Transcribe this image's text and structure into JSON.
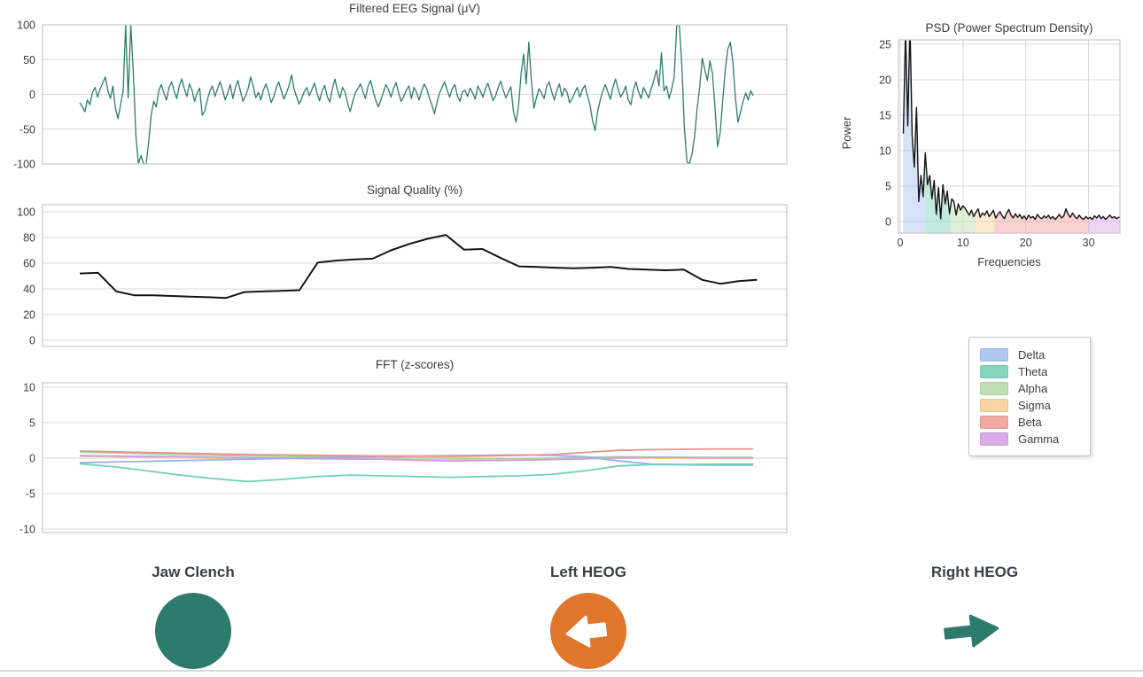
{
  "colors": {
    "eeg_line": "#2e7b6d",
    "quality_line": "#141414",
    "psd_line": "#141414",
    "grid": "#d9d9d9",
    "plot_border": "#c9c9c9",
    "indicator_teal": "#2e7b6d",
    "indicator_orange": "#e0762b",
    "divider": "#d7dbdf"
  },
  "legend": {
    "items": [
      {
        "label": "Delta",
        "color": "#aec6f0"
      },
      {
        "label": "Theta",
        "color": "#85d6bf"
      },
      {
        "label": "Alpha",
        "color": "#bfdfb2"
      },
      {
        "label": "Sigma",
        "color": "#f7d3a2"
      },
      {
        "label": "Beta",
        "color": "#f1a8a1"
      },
      {
        "label": "Gamma",
        "color": "#d9aee8"
      }
    ]
  },
  "indicators": {
    "items": [
      {
        "label": "Jaw Clench",
        "shape": "circle",
        "color": "#2e7b6d"
      },
      {
        "label": "Left HEOG",
        "shape": "circle-left-arrow",
        "color": "#e0762b"
      },
      {
        "label": "Right HEOG",
        "shape": "right-arrow",
        "color": "#2e7b6d"
      }
    ]
  },
  "chart_data": [
    {
      "type": "line",
      "title": "Filtered EEG Signal (μV)",
      "xlabel": "",
      "ylabel": "",
      "ylim": [
        -100,
        100
      ],
      "yticks": [
        100,
        50,
        0,
        -50,
        -100
      ],
      "grid": true,
      "series": [
        {
          "name": "EEG",
          "color": "#2e7b6d",
          "width": 1.3,
          "values": [
            -12,
            -18,
            -25,
            -8,
            -15,
            3,
            10,
            -4,
            8,
            16,
            25,
            6,
            -6,
            12,
            -20,
            -35,
            -15,
            5,
            100,
            -5,
            100,
            30,
            -60,
            -100,
            -88,
            -100,
            -100,
            -70,
            -30,
            -10,
            -18,
            6,
            14,
            2,
            -8,
            10,
            18,
            5,
            -6,
            12,
            22,
            8,
            -3,
            15,
            6,
            -10,
            2,
            9,
            -30,
            -24,
            -8,
            5,
            12,
            -3,
            8,
            18,
            6,
            -8,
            2,
            14,
            -6,
            10,
            20,
            4,
            -10,
            -2,
            8,
            25,
            12,
            -5,
            3,
            -8,
            6,
            15,
            3,
            -12,
            -4,
            9,
            18,
            5,
            -7,
            2,
            12,
            28,
            8,
            -4,
            -14,
            -6,
            4,
            10,
            -2,
            7,
            16,
            2,
            -9,
            5,
            13,
            -3,
            -11,
            8,
            22,
            6,
            -5,
            10,
            3,
            -13,
            -25,
            -10,
            2,
            8,
            15,
            4,
            -6,
            12,
            20,
            5,
            -8,
            -18,
            -8,
            3,
            14,
            7,
            -4,
            9,
            17,
            2,
            -10,
            -3,
            6,
            12,
            -6,
            10,
            3,
            -8,
            5,
            15,
            8,
            -5,
            -15,
            -28,
            -12,
            2,
            10,
            18,
            6,
            -4,
            8,
            14,
            -2,
            -10,
            4,
            6,
            -3,
            9,
            2,
            -7,
            12,
            5,
            -4,
            8,
            16,
            3,
            -9,
            -2,
            10,
            19,
            6,
            -5,
            3,
            11,
            -25,
            -40,
            -15,
            30,
            58,
            15,
            75,
            20,
            -20,
            -5,
            8,
            2,
            -6,
            12,
            18,
            4,
            -8,
            6,
            15,
            -3,
            9,
            3,
            -12,
            -6,
            2,
            10,
            -4,
            7,
            13,
            -2,
            -15,
            -38,
            -52,
            -25,
            -8,
            5,
            14,
            3,
            -7,
            10,
            22,
            8,
            -4,
            2,
            12,
            -8,
            -15,
            6,
            18,
            4,
            -6,
            10,
            2,
            -5,
            8,
            20,
            35,
            12,
            60,
            5,
            12,
            -6,
            8,
            25,
            100,
            100,
            40,
            -50,
            -97,
            -100,
            -85,
            -60,
            -20,
            10,
            52,
            35,
            20,
            48,
            30,
            -20,
            -75,
            -55,
            -10,
            35,
            65,
            75,
            45,
            -5,
            -40,
            -25,
            -10,
            2,
            -8,
            5,
            -2
          ]
        }
      ]
    },
    {
      "type": "line",
      "title": "Signal Quality (%)",
      "xlabel": "",
      "ylabel": "",
      "ylim": [
        0,
        100
      ],
      "yticks": [
        100,
        80,
        60,
        40,
        20,
        0
      ],
      "grid": true,
      "series": [
        {
          "name": "Signal Quality",
          "color": "#141414",
          "width": 2,
          "values": [
            52,
            52.5,
            38,
            35,
            35,
            34.5,
            34,
            33.5,
            33,
            37.5,
            38,
            38.5,
            39,
            60.5,
            62,
            63,
            63.5,
            70,
            75,
            79,
            82,
            70.5,
            71,
            64,
            57.5,
            57,
            56.5,
            56,
            56.5,
            57,
            55.5,
            55,
            54.5,
            55,
            47,
            44,
            46,
            47
          ]
        }
      ]
    },
    {
      "type": "line",
      "title": "FFT (z-scores)",
      "xlabel": "",
      "ylabel": "",
      "ylim": [
        -10,
        10
      ],
      "yticks": [
        10,
        5,
        0,
        -5,
        -10
      ],
      "grid": true,
      "series": [
        {
          "name": "Sigma",
          "color": "#f2c992",
          "width": 1.8,
          "values": [
            0.25,
            0.2,
            0.1,
            0.05,
            0,
            -0.05,
            -0.05,
            -0.1,
            -0.15,
            -0.15,
            -0.2,
            -0.25,
            -0.2,
            -0.15,
            -0.1,
            -0.05,
            0,
            0,
            -0.05,
            -0.05,
            -0.05
          ]
        },
        {
          "name": "Alpha",
          "color": "#a8d39c",
          "width": 1.8,
          "values": [
            0.85,
            0.75,
            0.6,
            0.5,
            0.4,
            0.3,
            0.25,
            0.2,
            0.15,
            0.1,
            0.05,
            0,
            -0.05,
            -0.05,
            0,
            0.1,
            0.2,
            0.15,
            0.1,
            0.1,
            0.1
          ]
        },
        {
          "name": "Gamma",
          "color": "#cf9de0",
          "width": 1.8,
          "values": [
            0.35,
            0.3,
            0.25,
            0.2,
            0.1,
            0.05,
            0,
            -0.05,
            -0.1,
            -0.15,
            -0.3,
            -0.4,
            -0.35,
            -0.3,
            -0.2,
            -0.1,
            0.05,
            0.1,
            0.1,
            0.05,
            0.05
          ]
        },
        {
          "name": "Delta",
          "color": "#96b1e8",
          "width": 1.8,
          "values": [
            -0.65,
            -0.55,
            -0.45,
            -0.35,
            -0.25,
            -0.15,
            -0.05,
            0.05,
            0.15,
            0.25,
            0.3,
            0.35,
            0.4,
            0.45,
            0.4,
            0.2,
            -0.4,
            -0.85,
            -0.9,
            -0.85,
            -0.85
          ]
        },
        {
          "name": "Beta",
          "color": "#ec9088",
          "width": 1.8,
          "values": [
            1.0,
            0.9,
            0.8,
            0.7,
            0.6,
            0.5,
            0.45,
            0.4,
            0.35,
            0.3,
            0.3,
            0.25,
            0.3,
            0.4,
            0.5,
            0.8,
            1.1,
            1.2,
            1.25,
            1.3,
            1.3
          ]
        },
        {
          "name": "Theta",
          "color": "#6fd1b8",
          "width": 1.8,
          "values": [
            -0.8,
            -1.2,
            -1.8,
            -2.4,
            -2.9,
            -3.3,
            -3.0,
            -2.6,
            -2.4,
            -2.5,
            -2.6,
            -2.7,
            -2.6,
            -2.5,
            -2.3,
            -1.8,
            -1.1,
            -0.9,
            -0.95,
            -1.0,
            -1.0
          ]
        }
      ]
    },
    {
      "type": "line",
      "title": "PSD (Power Spectrum Density)",
      "xlabel": "Frequencies",
      "ylabel": "Power",
      "ylim": [
        0,
        25
      ],
      "yticks": [
        25,
        20,
        15,
        10,
        5,
        0
      ],
      "xticks": [
        0,
        10,
        20,
        30
      ],
      "xlim": [
        0,
        35
      ],
      "x_start": 0.5,
      "x_step": 0.35,
      "grid": true,
      "bands": [
        {
          "name": "Delta",
          "range": [
            0.5,
            4
          ],
          "color": "#aec6f0"
        },
        {
          "name": "Theta",
          "range": [
            4,
            8
          ],
          "color": "#85d6bf"
        },
        {
          "name": "Alpha",
          "range": [
            8,
            12
          ],
          "color": "#bfdfb2"
        },
        {
          "name": "Sigma",
          "range": [
            12,
            15
          ],
          "color": "#f7d3a2"
        },
        {
          "name": "Beta",
          "range": [
            15,
            30
          ],
          "color": "#f1a8a1"
        },
        {
          "name": "Gamma",
          "range": [
            30,
            35.15
          ],
          "color": "#d9aee8"
        }
      ],
      "series": [
        {
          "name": "PSD",
          "color": "#141414",
          "width": 1.4,
          "values": [
            12.4,
            27,
            13.5,
            28,
            12,
            7.7,
            16.1,
            2.8,
            6.5,
            3.5,
            9.7,
            5.2,
            6.5,
            3.2,
            5.8,
            1.0,
            4.8,
            0.4,
            5.2,
            2.5,
            4.3,
            1.1,
            3.2,
            2.8,
            0.9,
            2.5,
            1.6,
            2.2,
            1.9,
            1.4,
            0.9,
            1.6,
            0.7,
            1.3,
            1.8,
            0.6,
            1.2,
            0.9,
            1.5,
            0.7,
            1.1,
            1.6,
            0.5,
            1.0,
            1.4,
            0.8,
            0.4,
            1.2,
            1.7,
            0.9,
            0.5,
            1.1,
            0.6,
            1.0,
            0.4,
            0.8,
            0.3,
            0.9,
            0.5,
            0.7,
            0.3,
            1.0,
            0.6,
            0.4,
            0.8,
            0.5,
            0.9,
            0.4,
            0.7,
            0.3,
            0.6,
            1.0,
            0.5,
            0.8,
            1.8,
            1.0,
            0.6,
            1.2,
            0.7,
            0.4,
            0.9,
            0.5,
            0.3,
            0.7,
            0.4,
            0.6,
            0.3,
            0.8,
            0.5,
            0.9,
            0.4,
            0.7,
            0.3,
            0.6,
            0.9,
            0.5,
            0.7,
            0.4,
            0.6,
            0.5
          ]
        }
      ]
    }
  ]
}
